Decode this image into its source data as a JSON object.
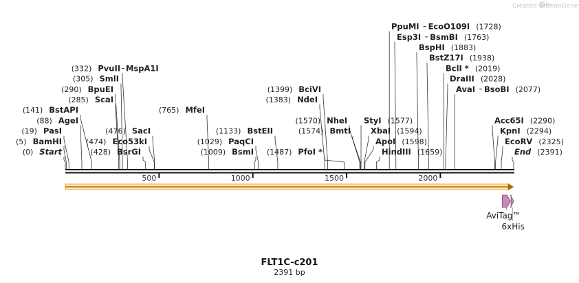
{
  "plasmid": {
    "name": "FLT1C-c201",
    "length_label": "2391 bp",
    "length": 2391
  },
  "credit": {
    "prefix": "Created with",
    "brand": "SnapGene"
  },
  "ticks": [
    {
      "value": 500,
      "label": "500"
    },
    {
      "value": 1000,
      "label": "1000"
    },
    {
      "value": 1500,
      "label": "1500"
    },
    {
      "value": 2000,
      "label": "2000"
    }
  ],
  "sites": [
    {
      "id": "start",
      "name": "Start",
      "pos_label": "(0)",
      "pos": 0,
      "italic": true
    },
    {
      "id": "bamhi",
      "name": "BamHI",
      "pos_label": "(5)",
      "pos": 5
    },
    {
      "id": "pasi",
      "name": "PasI",
      "pos_label": "(19)",
      "pos": 19
    },
    {
      "id": "agei",
      "name": "AgeI",
      "pos_label": "(88)",
      "pos": 88
    },
    {
      "id": "bstapi",
      "name": "BstAPI",
      "pos_label": "(141)",
      "pos": 141
    },
    {
      "id": "scai",
      "name": "ScaI",
      "pos_label": "(285)",
      "pos": 285
    },
    {
      "id": "bpuei",
      "name": "BpuEI",
      "pos_label": "(290)",
      "pos": 290
    },
    {
      "id": "smli",
      "name": "SmlI",
      "pos_label": "(305)",
      "pos": 305
    },
    {
      "id": "pvuii",
      "name": "PvuII",
      "pos_label": "(332)",
      "pos": 332,
      "suffix": "MspA1I"
    },
    {
      "id": "bsrgi",
      "name": "BsrGI",
      "pos_label": "(428)",
      "pos": 428
    },
    {
      "id": "eco53ki",
      "name": "Eco53kI",
      "pos_label": "(474)",
      "pos": 474
    },
    {
      "id": "saci",
      "name": "SacI",
      "pos_label": "(476)",
      "pos": 476
    },
    {
      "id": "mfei",
      "name": "MfeI",
      "pos_label": "(765)",
      "pos": 765
    },
    {
      "id": "bsmi",
      "name": "BsmI",
      "pos_label": "(1009)",
      "pos": 1009
    },
    {
      "id": "paqci",
      "name": "PaqCI",
      "pos_label": "(1029)",
      "pos": 1029
    },
    {
      "id": "bsteii",
      "name": "BstEII",
      "pos_label": "(1133)",
      "pos": 1133
    },
    {
      "id": "ndei",
      "name": "NdeI",
      "pos_label": "(1383)",
      "pos": 1383
    },
    {
      "id": "bcivi",
      "name": "BciVI",
      "pos_label": "(1399)",
      "pos": 1399
    },
    {
      "id": "pfoi",
      "name": "PfoI *",
      "pos_label": "(1487)",
      "pos": 1487
    },
    {
      "id": "nhei",
      "name": "NheI",
      "pos_label": "(1570)",
      "pos": 1570
    },
    {
      "id": "bmti",
      "name": "BmtI",
      "pos_label": "(1574)",
      "pos": 1574
    },
    {
      "id": "styi",
      "name": "StyI",
      "pos_label": "(1577)",
      "pos": 1577
    },
    {
      "id": "xbai",
      "name": "XbaI",
      "pos_label": "(1594)",
      "pos": 1594
    },
    {
      "id": "apoi",
      "name": "ApoI",
      "pos_label": "(1598)",
      "pos": 1598
    },
    {
      "id": "hindiii",
      "name": "HindIII",
      "pos_label": "(1659)",
      "pos": 1659
    },
    {
      "id": "ppumi",
      "name": "PpuMI",
      "pos_label": "(1728)",
      "pos": 1728,
      "suffix": "EcoO109I"
    },
    {
      "id": "esp3i",
      "name": "Esp3I",
      "pos_label": "(1763)",
      "pos": 1763,
      "suffix": "BsmBI"
    },
    {
      "id": "bsphi",
      "name": "BspHI",
      "pos_label": "(1883)",
      "pos": 1883
    },
    {
      "id": "bstz17i",
      "name": "BstZ17I",
      "pos_label": "(1938)",
      "pos": 1938
    },
    {
      "id": "bcli",
      "name": "BclI *",
      "pos_label": "(2019)",
      "pos": 2019
    },
    {
      "id": "draiii",
      "name": "DraIII",
      "pos_label": "(2028)",
      "pos": 2028
    },
    {
      "id": "avai",
      "name": "AvaI",
      "pos_label": "(2077)",
      "pos": 2077,
      "suffix": "BsoBI"
    },
    {
      "id": "acc65i",
      "name": "Acc65I",
      "pos_label": "(2290)",
      "pos": 2290
    },
    {
      "id": "kpni",
      "name": "KpnI",
      "pos_label": "(2294)",
      "pos": 2294
    },
    {
      "id": "ecorv",
      "name": "EcoRV",
      "pos_label": "(2325)",
      "pos": 2325
    },
    {
      "id": "end",
      "name": "End",
      "pos_label": "(2391)",
      "pos": 2391,
      "italic": true
    }
  ],
  "features": [
    {
      "id": "orf",
      "name": "",
      "start": 0,
      "end": 2391,
      "color": "#f5a623",
      "type": "orf"
    },
    {
      "id": "avitag",
      "name": "AviTag™",
      "start": 2330,
      "end": 2374,
      "color": "#c98bb9",
      "type": "tag"
    },
    {
      "id": "his6",
      "name": "6xHis",
      "start": 2377,
      "end": 2391,
      "color": "#c98bb9",
      "type": "tag"
    }
  ]
}
